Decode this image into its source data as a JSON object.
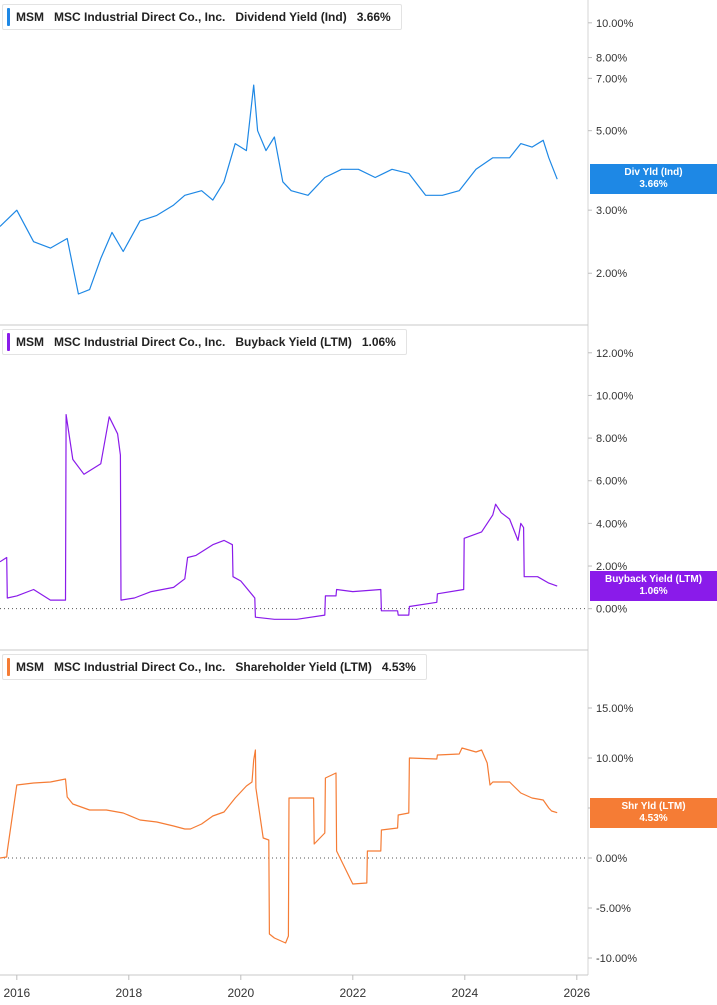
{
  "panels": [
    {
      "ticker": "MSM",
      "company": "MSC Industrial Direct Co., Inc.",
      "metric": "Dividend Yield (Ind)",
      "value": "3.66%",
      "pill_label": "Div Yld (Ind)",
      "pill_value": "3.66%",
      "color": "#1e88e5"
    },
    {
      "ticker": "MSM",
      "company": "MSC Industrial Direct Co., Inc.",
      "metric": "Buyback Yield (LTM)",
      "value": "1.06%",
      "pill_label": "Buyback Yield (LTM)",
      "pill_value": "1.06%",
      "color": "#8a1bea"
    },
    {
      "ticker": "MSM",
      "company": "MSC Industrial Direct Co., Inc.",
      "metric": "Shareholder Yield (LTM)",
      "value": "4.53%",
      "pill_label": "Shr Yld (LTM)",
      "pill_value": "4.53%",
      "color": "#f57c35"
    }
  ],
  "x_axis": {
    "labels": [
      "2016",
      "2018",
      "2020",
      "2022",
      "2024",
      "2026"
    ],
    "range": [
      2015.7,
      2026.2
    ]
  },
  "chart_data": [
    {
      "type": "line",
      "scale": "log",
      "series_name": "Dividend Yield (Ind)",
      "color": "#1e88e5",
      "ylim": [
        1.5,
        11
      ],
      "y_ticks": [
        "10.00%",
        "8.00%",
        "7.00%",
        "5.00%",
        "3.00%",
        "2.00%"
      ],
      "y_tick_values": [
        10,
        8,
        7,
        5,
        3,
        2
      ],
      "x": [
        2015.7,
        2016.0,
        2016.3,
        2016.6,
        2016.9,
        2017.1,
        2017.3,
        2017.5,
        2017.7,
        2017.9,
        2018.2,
        2018.5,
        2018.8,
        2019.0,
        2019.3,
        2019.5,
        2019.7,
        2019.9,
        2020.1,
        2020.23,
        2020.3,
        2020.45,
        2020.6,
        2020.75,
        2020.9,
        2021.2,
        2021.5,
        2021.8,
        2022.1,
        2022.4,
        2022.7,
        2023.0,
        2023.3,
        2023.6,
        2023.9,
        2024.2,
        2024.5,
        2024.8,
        2025.0,
        2025.2,
        2025.4,
        2025.5,
        2025.65
      ],
      "values": [
        2.7,
        3.0,
        2.45,
        2.35,
        2.5,
        1.75,
        1.8,
        2.2,
        2.6,
        2.3,
        2.8,
        2.9,
        3.1,
        3.3,
        3.4,
        3.2,
        3.6,
        4.6,
        4.4,
        6.7,
        5.0,
        4.4,
        4.8,
        3.6,
        3.4,
        3.3,
        3.7,
        3.9,
        3.9,
        3.7,
        3.9,
        3.8,
        3.3,
        3.3,
        3.4,
        3.9,
        4.2,
        4.2,
        4.6,
        4.5,
        4.7,
        4.2,
        3.66
      ]
    },
    {
      "type": "line",
      "scale": "linear",
      "series_name": "Buyback Yield (LTM)",
      "color": "#8a1bea",
      "ylim": [
        -1,
        12.6
      ],
      "y_ticks": [
        "12.00%",
        "10.00%",
        "8.00%",
        "6.00%",
        "4.00%",
        "2.00%",
        "0.00%"
      ],
      "y_tick_values": [
        12,
        10,
        8,
        6,
        4,
        2,
        0
      ],
      "x": [
        2015.7,
        2015.82,
        2015.83,
        2016.0,
        2016.3,
        2016.6,
        2016.87,
        2016.88,
        2017.0,
        2017.2,
        2017.5,
        2017.65,
        2017.8,
        2017.85,
        2017.86,
        2018.1,
        2018.4,
        2018.8,
        2019.0,
        2019.05,
        2019.2,
        2019.5,
        2019.7,
        2019.85,
        2019.86,
        2020.0,
        2020.25,
        2020.26,
        2020.6,
        2021.0,
        2021.5,
        2021.51,
        2021.7,
        2021.71,
        2022.0,
        2022.5,
        2022.51,
        2022.8,
        2022.81,
        2023.0,
        2023.01,
        2023.5,
        2023.51,
        2023.98,
        2023.99,
        2024.3,
        2024.5,
        2024.55,
        2024.65,
        2024.8,
        2024.95,
        2025.0,
        2025.05,
        2025.06,
        2025.3,
        2025.5,
        2025.65
      ],
      "values": [
        2.2,
        2.4,
        0.5,
        0.6,
        0.9,
        0.4,
        0.4,
        9.1,
        7.0,
        6.3,
        6.8,
        9.0,
        8.2,
        7.2,
        0.4,
        0.5,
        0.8,
        1.0,
        1.4,
        2.4,
        2.5,
        3.0,
        3.2,
        3.0,
        1.5,
        1.3,
        0.5,
        -0.4,
        -0.5,
        -0.5,
        -0.3,
        0.6,
        0.6,
        0.9,
        0.8,
        0.9,
        -0.1,
        -0.1,
        -0.3,
        -0.3,
        0.1,
        0.3,
        0.7,
        0.9,
        3.3,
        3.6,
        4.4,
        4.9,
        4.5,
        4.2,
        3.2,
        4.0,
        3.8,
        1.5,
        1.5,
        1.2,
        1.06
      ]
    },
    {
      "type": "line",
      "scale": "linear",
      "series_name": "Shareholder Yield (LTM)",
      "color": "#f57c35",
      "ylim": [
        -11,
        19
      ],
      "y_ticks": [
        "15.00%",
        "10.00%",
        "5.00%",
        "0.00%",
        "-5.00%",
        "-10.00%"
      ],
      "y_tick_values": [
        15,
        10,
        5,
        0,
        -5,
        -10
      ],
      "x": [
        2015.7,
        2015.82,
        2015.83,
        2016.0,
        2016.3,
        2016.6,
        2016.87,
        2016.9,
        2017.0,
        2017.3,
        2017.6,
        2017.9,
        2018.2,
        2018.5,
        2018.8,
        2019.0,
        2019.1,
        2019.3,
        2019.5,
        2019.7,
        2019.9,
        2020.1,
        2020.2,
        2020.23,
        2020.26,
        2020.27,
        2020.4,
        2020.5,
        2020.51,
        2020.6,
        2020.8,
        2020.85,
        2020.86,
        2021.3,
        2021.31,
        2021.5,
        2021.51,
        2021.7,
        2021.71,
        2022.0,
        2022.25,
        2022.26,
        2022.5,
        2022.51,
        2022.8,
        2022.81,
        2023.0,
        2023.01,
        2023.5,
        2023.51,
        2023.9,
        2023.95,
        2024.2,
        2024.3,
        2024.4,
        2024.45,
        2024.5,
        2024.8,
        2025.0,
        2025.2,
        2025.4,
        2025.5,
        2025.55,
        2025.65
      ],
      "values": [
        0,
        0.1,
        0.7,
        7.3,
        7.5,
        7.6,
        7.9,
        6.1,
        5.4,
        4.8,
        4.8,
        4.5,
        3.8,
        3.6,
        3.2,
        2.9,
        2.9,
        3.4,
        4.2,
        4.6,
        6.0,
        7.2,
        7.6,
        9.8,
        10.8,
        7.0,
        2.0,
        1.8,
        -7.6,
        -8.0,
        -8.5,
        -7.8,
        6.0,
        6.0,
        1.4,
        2.5,
        8.0,
        8.5,
        0.7,
        -2.6,
        -2.5,
        0.7,
        0.7,
        2.8,
        3.0,
        4.3,
        4.5,
        10.0,
        9.9,
        10.3,
        10.4,
        11.0,
        10.6,
        10.8,
        9.5,
        7.3,
        7.6,
        7.6,
        6.5,
        6.0,
        5.8,
        5.0,
        4.7,
        4.53
      ]
    }
  ]
}
